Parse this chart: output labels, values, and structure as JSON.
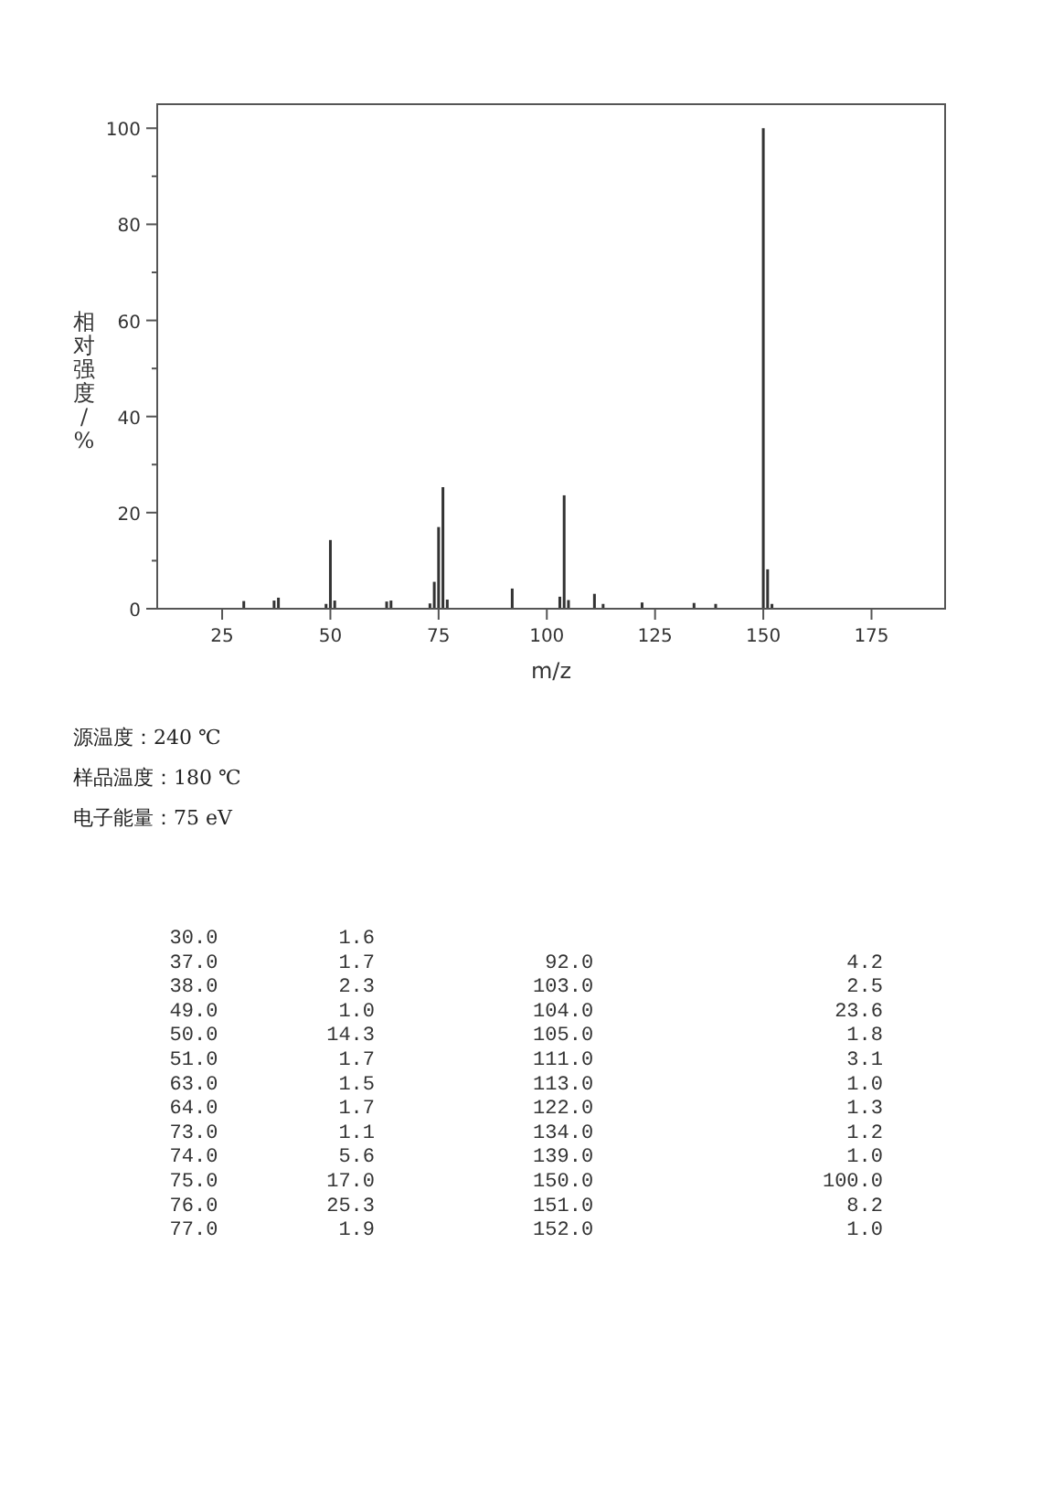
{
  "chart_data": {
    "type": "bar",
    "xlabel": "m/z",
    "ylabel": "相对强度/%",
    "x": [
      30,
      37,
      38,
      49,
      50,
      51,
      63,
      64,
      73,
      74,
      75,
      76,
      77,
      92,
      103,
      104,
      105,
      111,
      113,
      122,
      134,
      139,
      150,
      151,
      152
    ],
    "values": [
      1.6,
      1.7,
      2.3,
      1.0,
      14.3,
      1.7,
      1.5,
      1.7,
      1.1,
      5.6,
      17.0,
      25.3,
      1.9,
      4.2,
      2.5,
      23.6,
      1.8,
      3.1,
      1.0,
      1.3,
      1.2,
      1.0,
      100.0,
      8.2,
      1.0
    ],
    "color": "#333333",
    "xlim": [
      10,
      192
    ],
    "ylim": [
      0,
      105
    ],
    "xticks": [
      25,
      50,
      75,
      100,
      125,
      150,
      175
    ],
    "yticks": [
      0,
      {
        "value": 10,
        "label": null
      },
      20,
      {
        "value": 30,
        "label": null
      },
      40,
      {
        "value": 50,
        "label": null
      },
      60,
      {
        "value": 70,
        "label": null
      },
      80,
      {
        "value": 90,
        "label": null
      },
      100
    ],
    "annotations": [
      "源温度：240 ℃",
      "样品温度：180 ℃",
      "电子能量：75 eV",
      "  30.0          1.6",
      "  37.0          1.7",
      "  38.0          2.3",
      "  49.0          1.0",
      "  50.0         14.3",
      "  51.0          1.7",
      "  63.0          1.5",
      "  64.0          1.7",
      "  73.0          1.1",
      "  74.0          5.6",
      "  75.0         17.0",
      "  76.0         25.3",
      "  77.0          1.9",
      "  92.0                     4.2",
      " 103.0                     2.5",
      " 104.0                    23.6",
      " 105.0                     1.8",
      " 111.0                     3.1",
      " 113.0                     1.0",
      " 122.0                     1.3",
      " 134.0                     1.2",
      " 139.0                     1.0",
      " 150.0                   100.0",
      " 151.0                     8.2",
      " 152.0                     1.0"
    ]
  }
}
